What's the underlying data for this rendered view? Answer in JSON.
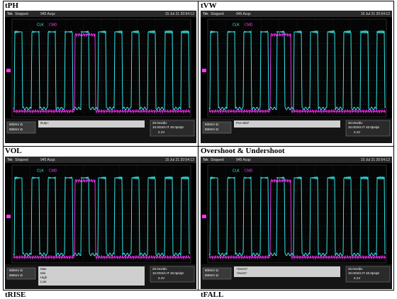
{
  "panels": [
    {
      "label": "tPH",
      "scope": {
        "brand": "Tek",
        "status": "Stopped",
        "acqs": "945 Acqs",
        "date": "15 Jul 21 20:54:12",
        "ch1": "CLK",
        "ch2": "CMD",
        "scale": "600mV Ω",
        "measurements": [
          "Duty+"
        ],
        "timebase": "20.0ns/div",
        "rate": "10.0GS/s IT 40.0ps/pt",
        "trigger": "2.1V"
      }
    },
    {
      "label": "tVW",
      "scope": {
        "brand": "Tek",
        "status": "Stopped",
        "acqs": "945 Acqs",
        "date": "15 Jul 21 20:54:12",
        "ch1": "CLK",
        "ch2": "CMD",
        "scale": "600mV Ω",
        "measurements": [
          "Pos Wid*"
        ],
        "timebase": "20.0ns/div",
        "rate": "10.0GS/s IT 40.0ps/pt",
        "trigger": "2.1V"
      }
    },
    {
      "label": "VOL",
      "scope": {
        "brand": "Tek",
        "status": "Stopped",
        "acqs": "945 Acqs",
        "date": "15 Jul 21 20:54:12",
        "ch1": "CLK",
        "ch2": "CMD",
        "scale": "600mV Ω",
        "measurements": [
          "Max",
          "Min",
          "High",
          "Low"
        ],
        "timebase": "20.0ns/div",
        "rate": "10.0GS/s IT 40.0ps/pt",
        "trigger": "2.1V"
      }
    },
    {
      "label": "Overshoot & Undershoot",
      "scope": {
        "brand": "Tek",
        "status": "Stopped",
        "acqs": "945 Acqs",
        "date": "15 Jul 21 20:54:12",
        "ch1": "CLK",
        "ch2": "CMD",
        "scale": "600mV Ω",
        "measurements": [
          "+Overs*",
          "-Overs*"
        ],
        "timebase": "20.0ns/div",
        "rate": "10.0GS/s IT 40.0ps/pt",
        "trigger": "2.1V"
      }
    }
  ],
  "footer_labels": [
    "tRISE",
    "tFALL"
  ]
}
